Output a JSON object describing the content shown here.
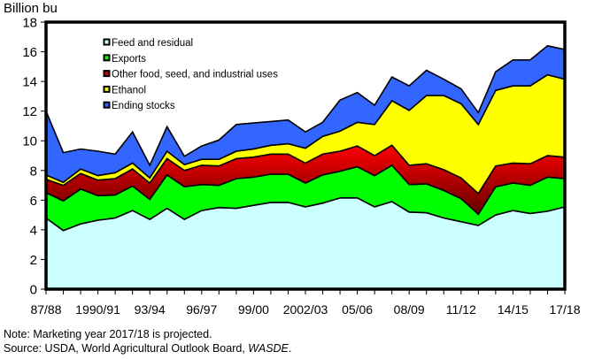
{
  "chart_data": {
    "type": "area",
    "stacked": true,
    "title": "",
    "ylabel": "Billion bu",
    "xlabel": "",
    "ylim": [
      0,
      18
    ],
    "yticks": [
      0,
      2,
      4,
      6,
      8,
      10,
      12,
      14,
      16,
      18
    ],
    "grid": false,
    "legend_position": "top-left",
    "x": [
      "87/88",
      "88/89",
      "89/90",
      "1990/91",
      "91/92",
      "92/93",
      "93/94",
      "94/95",
      "95/96",
      "96/97",
      "97/98",
      "98/99",
      "99/00",
      "2000/01",
      "01/02",
      "2002/03",
      "03/04",
      "04/05",
      "05/06",
      "06/07",
      "07/08",
      "08/09",
      "09/10",
      "10/11",
      "11/12",
      "12/13",
      "13/14",
      "14/15",
      "15/16",
      "16/17",
      "17/18"
    ],
    "xtick_labels": [
      "87/88",
      "1990/91",
      "93/94",
      "96/97",
      "99/00",
      "2002/03",
      "05/06",
      "08/09",
      "11/12",
      "14/15",
      "17/18"
    ],
    "series": [
      {
        "name": "Feed and residual",
        "color": "#ccffff",
        "values": [
          4.8,
          3.95,
          4.4,
          4.65,
          4.8,
          5.3,
          4.7,
          5.45,
          4.7,
          5.3,
          5.5,
          5.45,
          5.65,
          5.85,
          5.85,
          5.55,
          5.8,
          6.15,
          6.15,
          5.55,
          5.9,
          5.2,
          5.15,
          4.8,
          4.55,
          4.3,
          5.0,
          5.3,
          5.1,
          5.25,
          5.55
        ]
      },
      {
        "name": "Exports",
        "color": "#00ff00",
        "values": [
          1.7,
          2.0,
          2.35,
          1.65,
          1.55,
          1.65,
          1.35,
          2.25,
          2.2,
          1.75,
          1.5,
          2.0,
          1.9,
          1.9,
          1.9,
          1.6,
          1.9,
          1.8,
          2.1,
          2.1,
          2.45,
          1.85,
          1.95,
          1.85,
          1.55,
          0.75,
          1.9,
          1.85,
          1.9,
          2.3,
          1.9
        ]
      },
      {
        "name": "Other food, seed, and industrial uses",
        "color": "#ff0000",
        "values": [
          0.9,
          1.05,
          1.05,
          1.05,
          1.1,
          1.15,
          1.1,
          1.1,
          1.1,
          1.3,
          1.3,
          1.35,
          1.35,
          1.35,
          1.35,
          1.35,
          1.4,
          1.35,
          1.4,
          1.35,
          1.35,
          1.3,
          1.35,
          1.4,
          1.4,
          1.4,
          1.4,
          1.35,
          1.45,
          1.45,
          1.45
        ]
      },
      {
        "name": "Ethanol",
        "color": "#ffff00",
        "values": [
          0.3,
          0.2,
          0.3,
          0.3,
          0.4,
          0.4,
          0.35,
          0.5,
          0.4,
          0.4,
          0.45,
          0.5,
          0.55,
          0.6,
          0.7,
          1.0,
          1.2,
          1.35,
          1.6,
          2.1,
          3.0,
          3.7,
          4.6,
          5.0,
          5.0,
          4.65,
          5.1,
          5.2,
          5.25,
          5.45,
          5.25
        ]
      },
      {
        "name": "Ending stocks",
        "color": "#3366ff",
        "values": [
          4.3,
          2.0,
          1.35,
          1.65,
          1.25,
          2.1,
          0.85,
          1.65,
          0.55,
          0.9,
          1.3,
          1.8,
          1.75,
          1.6,
          1.6,
          1.1,
          0.95,
          2.1,
          2.0,
          1.3,
          1.6,
          1.65,
          1.7,
          1.1,
          1.0,
          0.8,
          1.25,
          1.75,
          1.75,
          1.95,
          2.0
        ]
      }
    ]
  },
  "notes": {
    "line1": "Note: Marketing year 2017/18 is projected.",
    "line2_prefix": "Source:  USDA, World Agricultural Outlook Board, ",
    "line2_italic": "WASDE",
    "line2_suffix": "."
  }
}
